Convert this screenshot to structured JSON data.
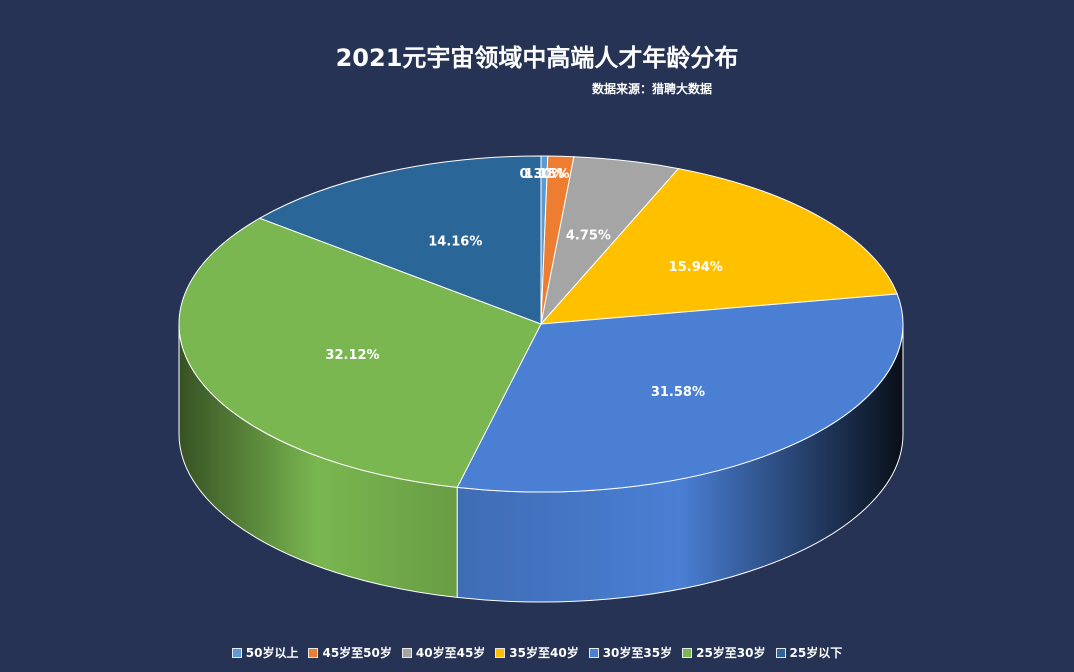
{
  "chart_data": {
    "type": "pie",
    "title": "2021元宇宙领域中高端人才年龄分布",
    "subtitle": "数据来源：猎聘大数据",
    "categories": [
      "50岁以上",
      "45岁至50岁",
      "40岁至45岁",
      "35岁至40岁",
      "30岁至35岁",
      "25岁至30岁",
      "25岁以下"
    ],
    "values": [
      0.3,
      1.15,
      4.75,
      15.94,
      31.58,
      32.12,
      14.16
    ],
    "labels": [
      "0.30%",
      "1.15%",
      "4.75%",
      "15.94%",
      "31.58%",
      "32.12%",
      "14.16%"
    ],
    "colors": [
      "#5b9bd5",
      "#ed7d31",
      "#a5a5a5",
      "#ffc000",
      "#4a7fd4",
      "#7ab750",
      "#2b6699"
    ],
    "legend_position": "bottom"
  }
}
